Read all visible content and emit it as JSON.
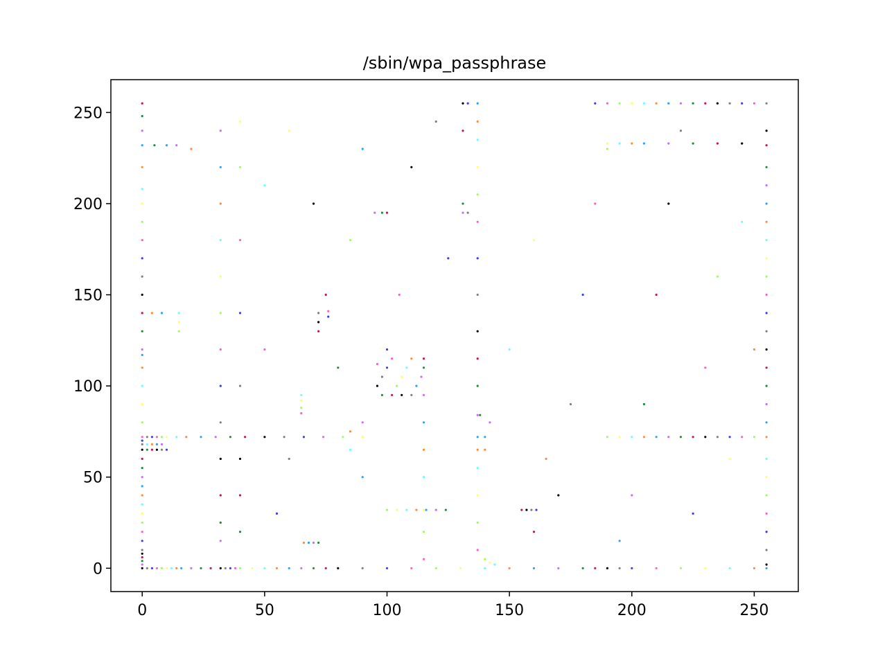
{
  "chart_data": {
    "type": "scatter",
    "title": "/sbin/wpa_passphrase",
    "xlabel": "",
    "ylabel": "",
    "xlim": [
      -12.8,
      268
    ],
    "ylim": [
      -12.8,
      268
    ],
    "x_ticks": [
      0,
      50,
      100,
      150,
      200,
      250
    ],
    "y_ticks": [
      0,
      50,
      100,
      150,
      200,
      250
    ],
    "grid": false,
    "marker_colors": [
      "#000000",
      "#7f7f7f",
      "#3a3aff",
      "#ff5ec4",
      "#9bff5a",
      "#ffff66",
      "#66ffff",
      "#ff8c3a",
      "#2aa0ff",
      "#c86bff",
      "#1e8c3a",
      "#c8144a"
    ],
    "series": [
      {
        "points": [
          [
            0,
            0
          ],
          [
            2,
            0
          ],
          [
            4,
            0
          ],
          [
            6,
            0
          ],
          [
            8,
            0
          ],
          [
            10,
            0
          ],
          [
            12,
            0
          ],
          [
            14,
            0
          ],
          [
            16,
            0
          ],
          [
            20,
            0
          ],
          [
            24,
            0
          ],
          [
            28,
            0
          ],
          [
            32,
            0
          ],
          [
            34,
            0
          ],
          [
            36,
            0
          ],
          [
            38,
            0
          ],
          [
            40,
            0
          ],
          [
            45,
            0
          ],
          [
            50,
            0
          ],
          [
            55,
            0
          ],
          [
            60,
            0
          ],
          [
            65,
            0
          ],
          [
            70,
            0
          ],
          [
            75,
            0
          ],
          [
            80,
            0
          ],
          [
            90,
            0
          ],
          [
            100,
            0
          ],
          [
            110,
            0
          ],
          [
            120,
            0
          ],
          [
            130,
            0
          ],
          [
            140,
            0
          ],
          [
            150,
            0
          ],
          [
            160,
            0
          ],
          [
            170,
            0
          ],
          [
            180,
            0
          ],
          [
            185,
            0
          ],
          [
            190,
            0
          ],
          [
            195,
            0
          ],
          [
            200,
            0
          ],
          [
            210,
            0
          ],
          [
            220,
            0
          ],
          [
            230,
            0
          ],
          [
            240,
            0
          ],
          [
            250,
            0
          ],
          [
            255,
            0
          ],
          [
            0,
            2
          ],
          [
            0,
            4
          ],
          [
            0,
            6
          ],
          [
            0,
            8
          ],
          [
            0,
            10
          ],
          [
            0,
            15
          ],
          [
            0,
            20
          ],
          [
            0,
            25
          ],
          [
            0,
            30
          ],
          [
            0,
            35
          ],
          [
            0,
            40
          ],
          [
            0,
            45
          ],
          [
            0,
            50
          ],
          [
            0,
            55
          ],
          [
            0,
            60
          ],
          [
            0,
            65
          ],
          [
            0,
            68
          ],
          [
            0,
            70
          ],
          [
            0,
            72
          ],
          [
            0,
            80
          ],
          [
            0,
            90
          ],
          [
            0,
            100
          ],
          [
            0,
            110
          ],
          [
            0,
            117
          ],
          [
            0,
            120
          ],
          [
            0,
            130
          ],
          [
            0,
            140
          ],
          [
            0,
            150
          ],
          [
            0,
            160
          ],
          [
            0,
            170
          ],
          [
            0,
            180
          ],
          [
            0,
            190
          ],
          [
            0,
            200
          ],
          [
            0,
            208
          ],
          [
            0,
            220
          ],
          [
            0,
            232
          ],
          [
            0,
            240
          ],
          [
            0,
            248
          ],
          [
            0,
            255
          ],
          [
            255,
            2
          ],
          [
            255,
            10
          ],
          [
            255,
            20
          ],
          [
            255,
            30
          ],
          [
            255,
            40
          ],
          [
            255,
            50
          ],
          [
            255,
            60
          ],
          [
            255,
            72
          ],
          [
            255,
            80
          ],
          [
            255,
            90
          ],
          [
            255,
            100
          ],
          [
            255,
            110
          ],
          [
            255,
            120
          ],
          [
            255,
            130
          ],
          [
            255,
            140
          ],
          [
            255,
            150
          ],
          [
            255,
            160
          ],
          [
            255,
            170
          ],
          [
            255,
            180
          ],
          [
            255,
            190
          ],
          [
            255,
            200
          ],
          [
            255,
            210
          ],
          [
            255,
            220
          ],
          [
            255,
            232
          ],
          [
            255,
            240
          ],
          [
            255,
            255
          ],
          [
            185,
            255
          ],
          [
            190,
            255
          ],
          [
            195,
            255
          ],
          [
            200,
            255
          ],
          [
            205,
            255
          ],
          [
            210,
            255
          ],
          [
            215,
            255
          ],
          [
            220,
            255
          ],
          [
            225,
            255
          ],
          [
            230,
            255
          ],
          [
            235,
            255
          ],
          [
            240,
            255
          ],
          [
            245,
            255
          ],
          [
            250,
            255
          ],
          [
            190,
            72
          ],
          [
            195,
            72
          ],
          [
            200,
            72
          ],
          [
            205,
            72
          ],
          [
            210,
            72
          ],
          [
            215,
            72
          ],
          [
            220,
            72
          ],
          [
            225,
            72
          ],
          [
            230,
            72
          ],
          [
            235,
            72
          ],
          [
            240,
            72
          ],
          [
            245,
            72
          ],
          [
            250,
            72
          ],
          [
            190,
            233
          ],
          [
            195,
            233
          ],
          [
            200,
            233
          ],
          [
            205,
            233
          ],
          [
            215,
            233
          ],
          [
            225,
            233
          ],
          [
            235,
            233
          ],
          [
            245,
            233
          ],
          [
            2,
            72
          ],
          [
            4,
            72
          ],
          [
            6,
            72
          ],
          [
            8,
            72
          ],
          [
            10,
            72
          ],
          [
            14,
            72
          ],
          [
            18,
            72
          ],
          [
            24,
            72
          ],
          [
            30,
            72
          ],
          [
            36,
            72
          ],
          [
            42,
            72
          ],
          [
            50,
            72
          ],
          [
            58,
            72
          ],
          [
            66,
            72
          ],
          [
            74,
            72
          ],
          [
            82,
            72
          ],
          [
            90,
            72
          ],
          [
            2,
            68
          ],
          [
            4,
            68
          ],
          [
            6,
            68
          ],
          [
            8,
            68
          ],
          [
            2,
            65
          ],
          [
            4,
            65
          ],
          [
            6,
            65
          ],
          [
            8,
            65
          ],
          [
            10,
            65
          ],
          [
            137,
            10
          ],
          [
            137,
            25
          ],
          [
            137,
            40
          ],
          [
            137,
            55
          ],
          [
            137,
            65
          ],
          [
            137,
            72
          ],
          [
            137,
            84
          ],
          [
            137,
            100
          ],
          [
            137,
            115
          ],
          [
            137,
            130
          ],
          [
            137,
            150
          ],
          [
            137,
            170
          ],
          [
            137,
            190
          ],
          [
            137,
            205
          ],
          [
            137,
            220
          ],
          [
            137,
            235
          ],
          [
            137,
            245
          ],
          [
            137,
            255
          ],
          [
            131,
            195
          ],
          [
            131,
            200
          ],
          [
            131,
            240
          ],
          [
            131,
            255
          ],
          [
            133,
            195
          ],
          [
            133,
            255
          ],
          [
            115,
            5
          ],
          [
            115,
            20
          ],
          [
            115,
            32
          ],
          [
            115,
            50
          ],
          [
            115,
            65
          ],
          [
            115,
            80
          ],
          [
            115,
            95
          ],
          [
            115,
            110
          ],
          [
            115,
            115
          ],
          [
            96,
            100
          ],
          [
            98,
            105
          ],
          [
            100,
            110
          ],
          [
            102,
            115
          ],
          [
            104,
            100
          ],
          [
            106,
            105
          ],
          [
            108,
            110
          ],
          [
            110,
            115
          ],
          [
            112,
            100
          ],
          [
            114,
            105
          ],
          [
            98,
            95
          ],
          [
            102,
            95
          ],
          [
            106,
            95
          ],
          [
            110,
            95
          ],
          [
            100,
            120
          ],
          [
            96,
            112
          ],
          [
            100,
            32
          ],
          [
            104,
            32
          ],
          [
            108,
            32
          ],
          [
            112,
            32
          ],
          [
            116,
            32
          ],
          [
            120,
            32
          ],
          [
            124,
            32
          ],
          [
            155,
            32
          ],
          [
            157,
            32
          ],
          [
            159,
            32
          ],
          [
            161,
            32
          ],
          [
            65,
            85
          ],
          [
            65,
            88
          ],
          [
            65,
            92
          ],
          [
            65,
            95
          ],
          [
            66,
            14
          ],
          [
            68,
            14
          ],
          [
            70,
            14
          ],
          [
            72,
            14
          ],
          [
            72,
            130
          ],
          [
            72,
            135
          ],
          [
            72,
            140
          ],
          [
            76,
            138
          ],
          [
            76,
            141
          ],
          [
            15,
            130
          ],
          [
            15,
            135
          ],
          [
            15,
            140
          ],
          [
            4,
            140
          ],
          [
            8,
            140
          ],
          [
            32,
            15
          ],
          [
            32,
            25
          ],
          [
            32,
            40
          ],
          [
            32,
            60
          ],
          [
            32,
            80
          ],
          [
            32,
            100
          ],
          [
            32,
            120
          ],
          [
            32,
            140
          ],
          [
            32,
            160
          ],
          [
            32,
            180
          ],
          [
            32,
            200
          ],
          [
            32,
            220
          ],
          [
            32,
            240
          ],
          [
            40,
            20
          ],
          [
            40,
            40
          ],
          [
            40,
            60
          ],
          [
            40,
            100
          ],
          [
            40,
            140
          ],
          [
            40,
            180
          ],
          [
            40,
            220
          ],
          [
            40,
            245
          ],
          [
            85,
            65
          ],
          [
            85,
            75
          ],
          [
            90,
            50
          ],
          [
            90,
            80
          ],
          [
            80,
            110
          ],
          [
            75,
            150
          ],
          [
            70,
            200
          ],
          [
            60,
            60
          ],
          [
            55,
            30
          ],
          [
            50,
            120
          ],
          [
            140,
            5
          ],
          [
            142,
            3
          ],
          [
            144,
            2
          ],
          [
            140,
            65
          ],
          [
            140,
            72
          ],
          [
            142,
            80
          ],
          [
            138,
            84
          ],
          [
            160,
            20
          ],
          [
            170,
            40
          ],
          [
            175,
            90
          ],
          [
            180,
            150
          ],
          [
            185,
            200
          ],
          [
            190,
            230
          ],
          [
            160,
            180
          ],
          [
            150,
            120
          ],
          [
            165,
            60
          ],
          [
            195,
            15
          ],
          [
            200,
            40
          ],
          [
            205,
            90
          ],
          [
            210,
            150
          ],
          [
            215,
            200
          ],
          [
            220,
            240
          ],
          [
            225,
            30
          ],
          [
            230,
            110
          ],
          [
            235,
            160
          ],
          [
            240,
            60
          ],
          [
            245,
            190
          ],
          [
            250,
            120
          ],
          [
            90,
            230
          ],
          [
            95,
            195
          ],
          [
            98,
            195
          ],
          [
            100,
            195
          ],
          [
            110,
            220
          ],
          [
            120,
            245
          ],
          [
            125,
            170
          ],
          [
            105,
            150
          ],
          [
            85,
            180
          ],
          [
            60,
            240
          ],
          [
            50,
            210
          ],
          [
            20,
            230
          ],
          [
            10,
            232
          ],
          [
            14,
            232
          ],
          [
            5,
            232
          ]
        ]
      }
    ]
  }
}
